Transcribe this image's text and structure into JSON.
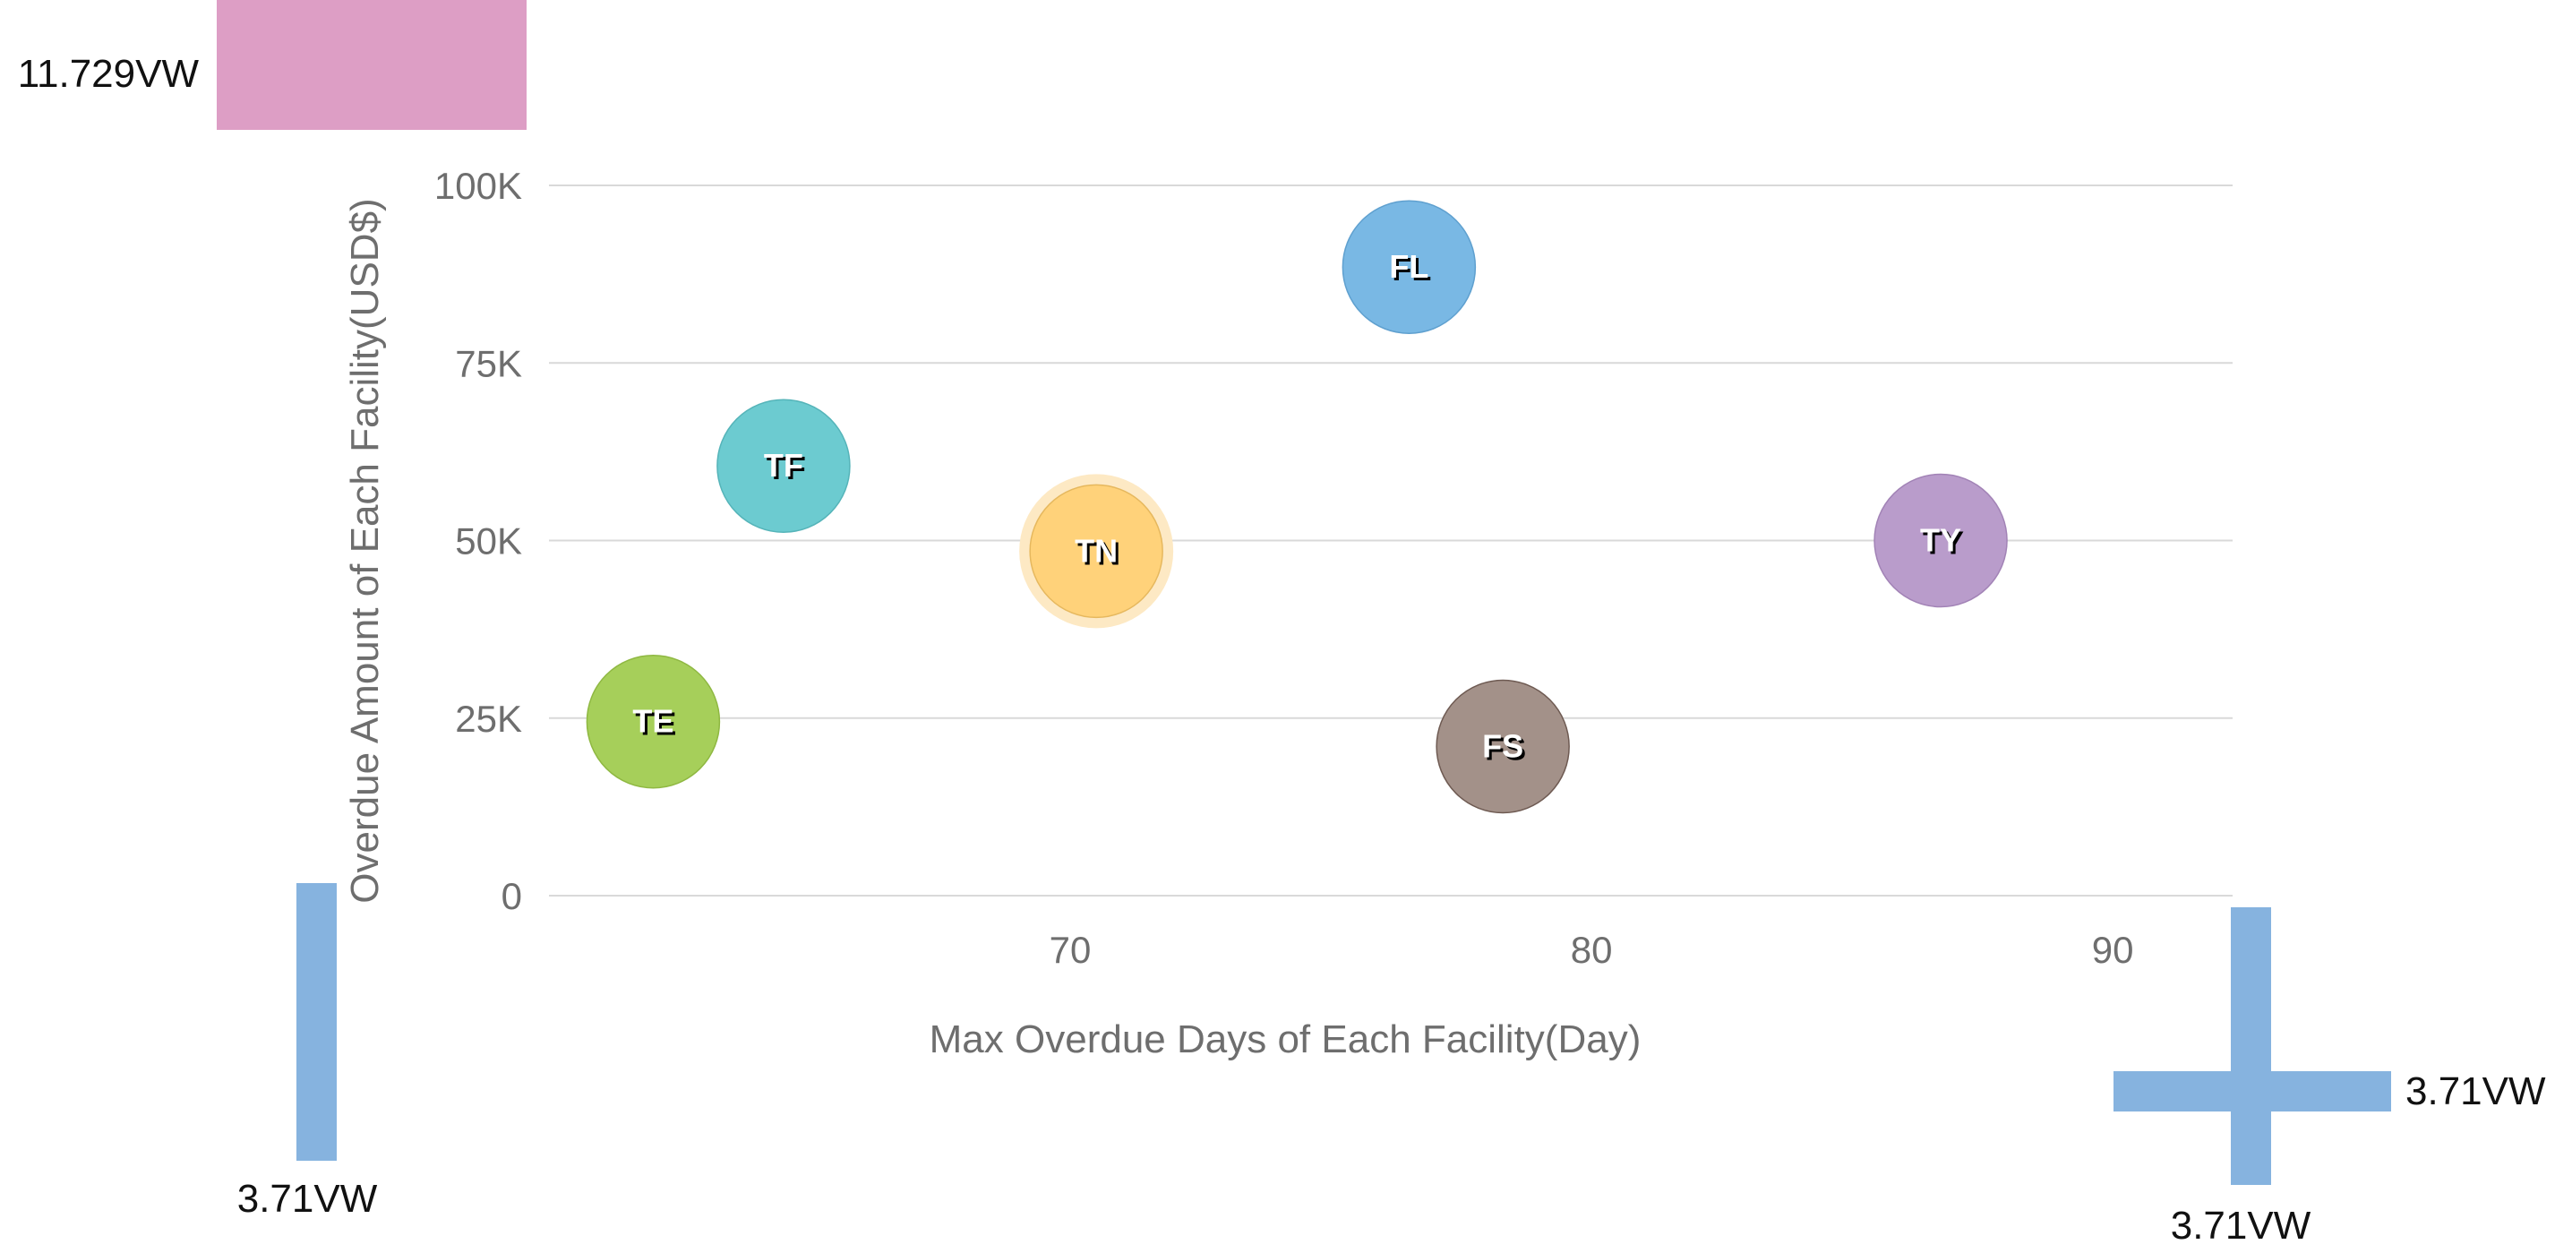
{
  "chart_data": {
    "type": "scatter",
    "xlabel": "Max Overdue Days of Each Facility(Day)",
    "ylabel": "Overdue Amount of Each Facility(USD$)",
    "xlim": [
      60,
      92.3
    ],
    "ylim": [
      0,
      100000
    ],
    "x_ticks": [
      {
        "value": 70,
        "label": "70"
      },
      {
        "value": 80,
        "label": "80"
      },
      {
        "value": 90,
        "label": "90"
      }
    ],
    "y_ticks": [
      {
        "value": 0,
        "label": "0"
      },
      {
        "value": 25000,
        "label": "25K"
      },
      {
        "value": 50000,
        "label": "50K"
      },
      {
        "value": 75000,
        "label": "75K"
      },
      {
        "value": 100000,
        "label": "100K"
      }
    ],
    "grid": true,
    "points": [
      {
        "label": "TE",
        "x": 62.0,
        "y": 24500,
        "color": "#a6cf5a",
        "stroke": "#8fb842"
      },
      {
        "label": "TF",
        "x": 64.5,
        "y": 60500,
        "color": "#6ccbd0",
        "stroke": "#55b4b9"
      },
      {
        "label": "TN",
        "x": 70.5,
        "y": 48500,
        "color": "#ffd27a",
        "stroke": "#e6b85e",
        "highlight": true,
        "halo": "#fde9c4"
      },
      {
        "label": "FL",
        "x": 76.5,
        "y": 88500,
        "color": "#79b8e4",
        "stroke": "#5fa0cf"
      },
      {
        "label": "FS",
        "x": 78.3,
        "y": 21000,
        "color": "#a39189",
        "stroke": "#6e5a52"
      },
      {
        "label": "TY",
        "x": 86.7,
        "y": 50000,
        "color": "#b99ccb",
        "stroke": "#a283b6"
      }
    ]
  },
  "annotations": [
    {
      "text": "11.729VW",
      "color": "#dd9ec5"
    },
    {
      "text": "3.71VW",
      "color": "#86b3df"
    },
    {
      "text": "3.71VW",
      "color": "#86b3df"
    },
    {
      "text": "3.71VW",
      "color": "#86b3df"
    }
  ]
}
